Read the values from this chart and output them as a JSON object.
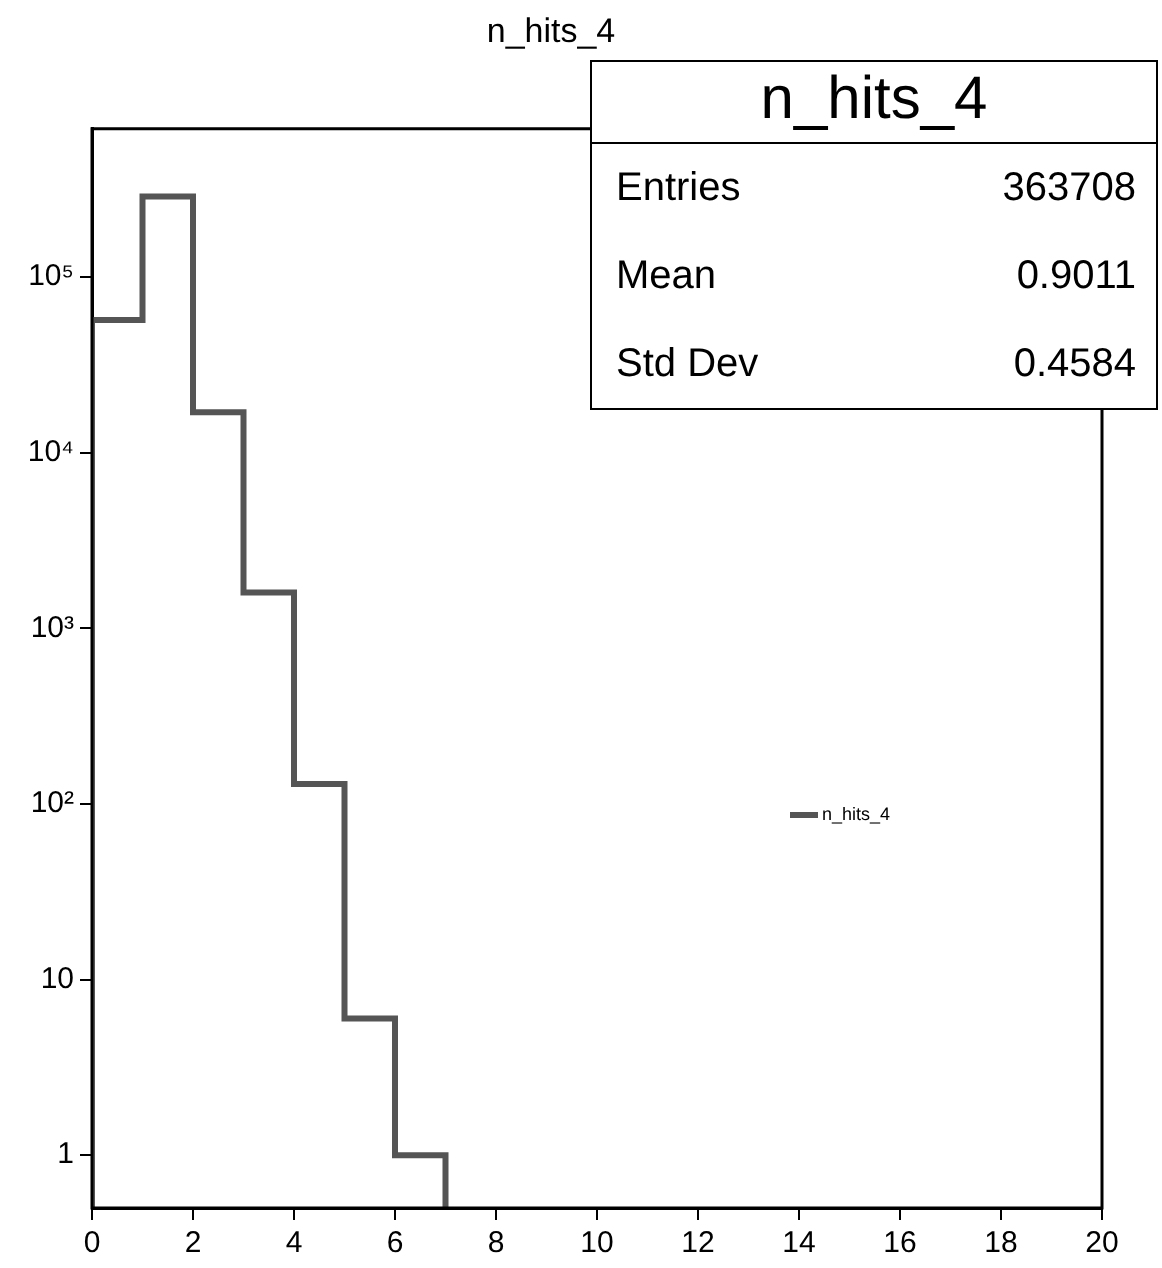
{
  "chart_data": {
    "type": "histogram",
    "title": "n_hits_4",
    "bins": [
      0,
      1,
      2,
      3,
      4,
      5,
      6,
      7
    ],
    "series": [
      {
        "name": "n_hits_4",
        "color": "#555555",
        "values": [
          57000,
          288000,
          17000,
          1600,
          130,
          6,
          1
        ]
      }
    ],
    "xlim": [
      0,
      20
    ],
    "xticks": [
      0,
      2,
      4,
      6,
      8,
      10,
      12,
      14,
      16,
      18,
      20
    ],
    "log": "y",
    "ylim": [
      0.5,
      700000
    ],
    "yticks": [
      1,
      10,
      {
        "value": 100,
        "label": "10²"
      },
      {
        "value": 1000,
        "label": "10³"
      },
      {
        "value": 10000,
        "label": "10⁴"
      },
      {
        "value": 100000,
        "label": "10⁵"
      }
    ],
    "grid": false,
    "legend": "right",
    "annotations": [
      "n_hits_4",
      "Entries",
      "363708",
      "Mean",
      "0.9011",
      "Std Dev",
      "0.4584"
    ]
  }
}
